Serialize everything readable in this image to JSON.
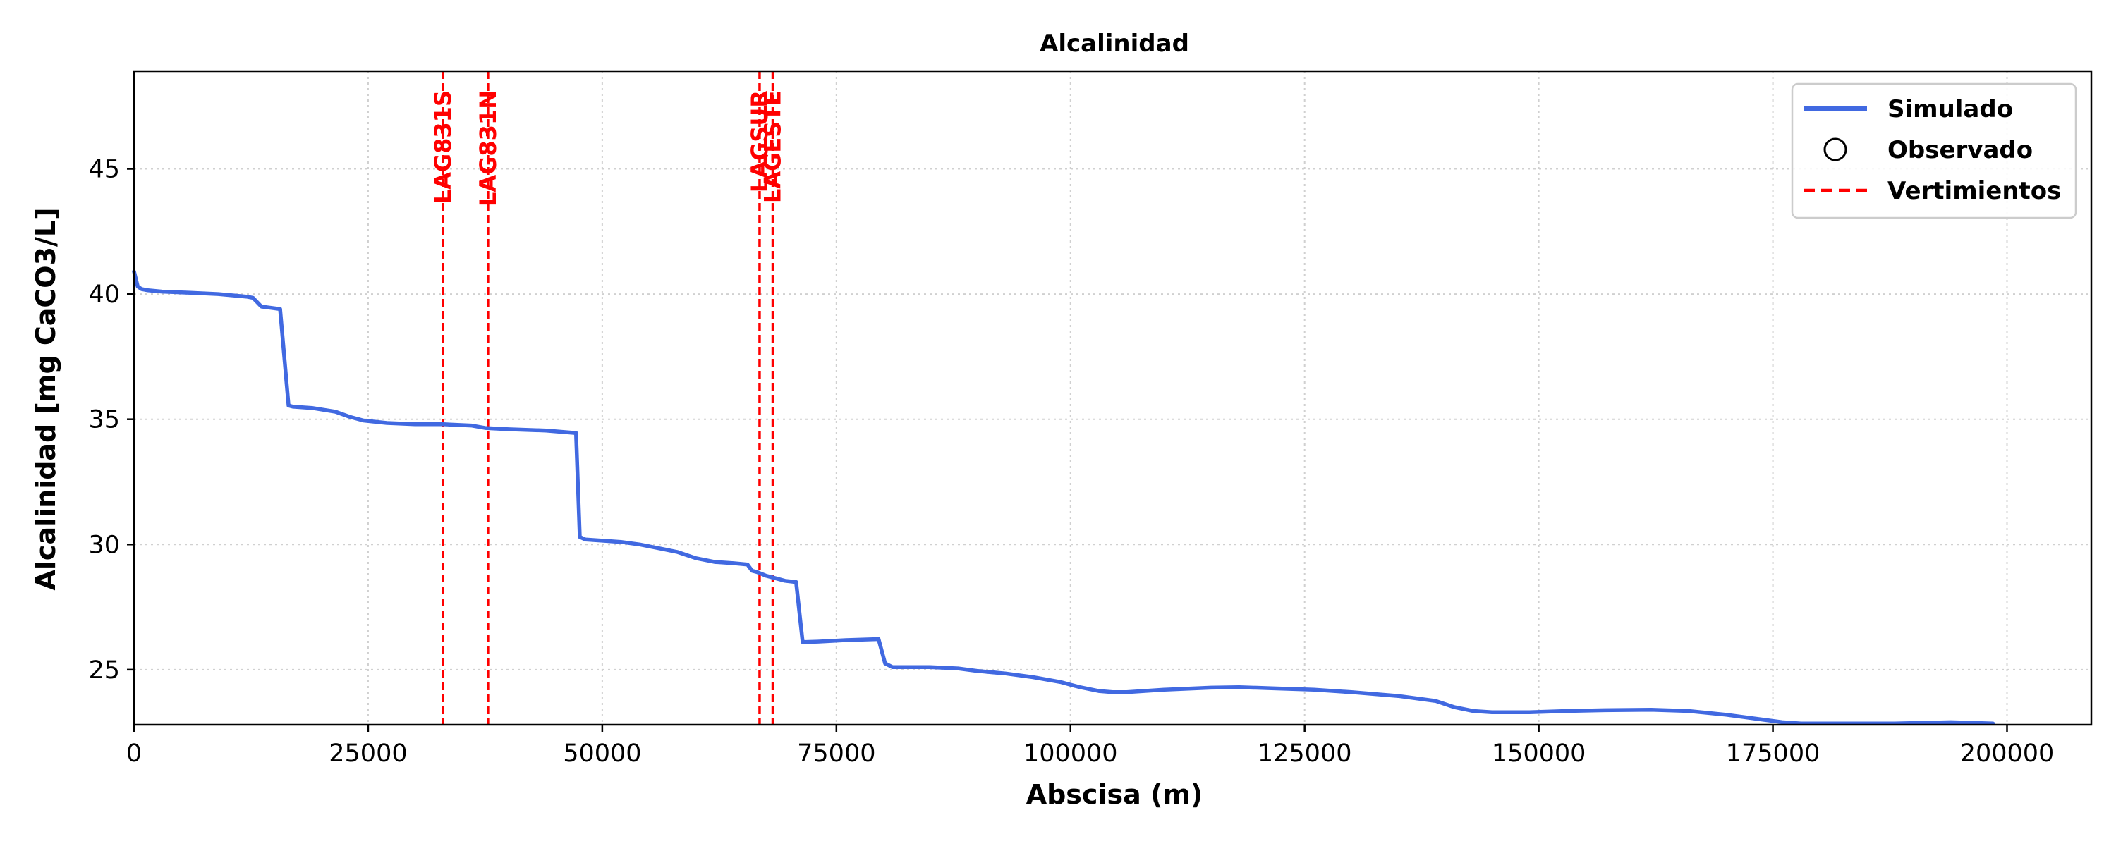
{
  "chart_data": {
    "type": "line",
    "title": "Alcalinidad",
    "xlabel": "Abscisa (m)",
    "ylabel": "Alcalinidad [mg CaCO3/L]",
    "xlim": [
      0,
      209000
    ],
    "ylim": [
      22.8,
      48.9
    ],
    "xticks": [
      0,
      25000,
      50000,
      75000,
      100000,
      125000,
      150000,
      175000,
      200000
    ],
    "xtick_labels": [
      "0",
      "25000",
      "50000",
      "75000",
      "100000",
      "125000",
      "150000",
      "175000",
      "200000"
    ],
    "yticks": [
      25,
      30,
      35,
      40,
      45
    ],
    "ytick_labels": [
      "25",
      "30",
      "35",
      "40",
      "45"
    ],
    "grid": true,
    "legend_position": "top-right",
    "legend": [
      {
        "label": "Simulado",
        "kind": "line",
        "color": "#4169e1"
      },
      {
        "label": "Observado",
        "kind": "marker",
        "color": "#000000"
      },
      {
        "label": "Vertimientos",
        "kind": "dashed",
        "color": "#ff0000"
      }
    ],
    "vertical_lines": [
      {
        "x": 33000,
        "label": "LAG831S"
      },
      {
        "x": 37800,
        "label": "LAG831N"
      },
      {
        "x": 66800,
        "label": "LAGSUR"
      },
      {
        "x": 68200,
        "label": "LAGESTE"
      }
    ],
    "series": [
      {
        "name": "Simulado",
        "color": "#4169e1",
        "x": [
          0,
          400,
          800,
          1500,
          3000,
          6000,
          9000,
          12000,
          12700,
          13600,
          15600,
          16500,
          17000,
          19000,
          21500,
          23000,
          24500,
          27000,
          30000,
          33000,
          36000,
          37500,
          40000,
          44000,
          47200,
          47600,
          48200,
          50000,
          52000,
          54000,
          56000,
          58000,
          60000,
          62000,
          64000,
          65500,
          66000,
          66500,
          67500,
          68500,
          69500,
          70700,
          71400,
          73000,
          76000,
          79500,
          80200,
          81000,
          82000,
          85000,
          88000,
          90000,
          93000,
          96000,
          99000,
          101000,
          103000,
          104500,
          106000,
          110000,
          115000,
          118000,
          122000,
          126000,
          130000,
          135000,
          139000,
          141000,
          143000,
          145000,
          149000,
          153000,
          157000,
          162000,
          166000,
          170000,
          172000,
          174000,
          176000,
          178000,
          182000,
          188000,
          194000,
          198500
        ],
        "values": [
          40.9,
          40.3,
          40.2,
          40.15,
          40.1,
          40.05,
          40.0,
          39.9,
          39.85,
          39.5,
          39.4,
          35.55,
          35.5,
          35.45,
          35.3,
          35.1,
          34.95,
          34.85,
          34.8,
          34.8,
          34.75,
          34.65,
          34.6,
          34.55,
          34.45,
          30.3,
          30.2,
          30.15,
          30.1,
          30.0,
          29.85,
          29.7,
          29.45,
          29.3,
          29.25,
          29.2,
          28.95,
          28.9,
          28.75,
          28.65,
          28.55,
          28.5,
          26.1,
          26.12,
          26.18,
          26.22,
          25.25,
          25.1,
          25.1,
          25.1,
          25.05,
          24.95,
          24.85,
          24.7,
          24.5,
          24.3,
          24.15,
          24.1,
          24.1,
          24.2,
          24.28,
          24.3,
          24.25,
          24.2,
          24.1,
          23.95,
          23.75,
          23.5,
          23.35,
          23.3,
          23.3,
          23.35,
          23.38,
          23.4,
          23.35,
          23.2,
          23.1,
          23.0,
          22.9,
          22.85,
          22.85,
          22.85,
          22.9,
          22.85
        ]
      }
    ]
  }
}
